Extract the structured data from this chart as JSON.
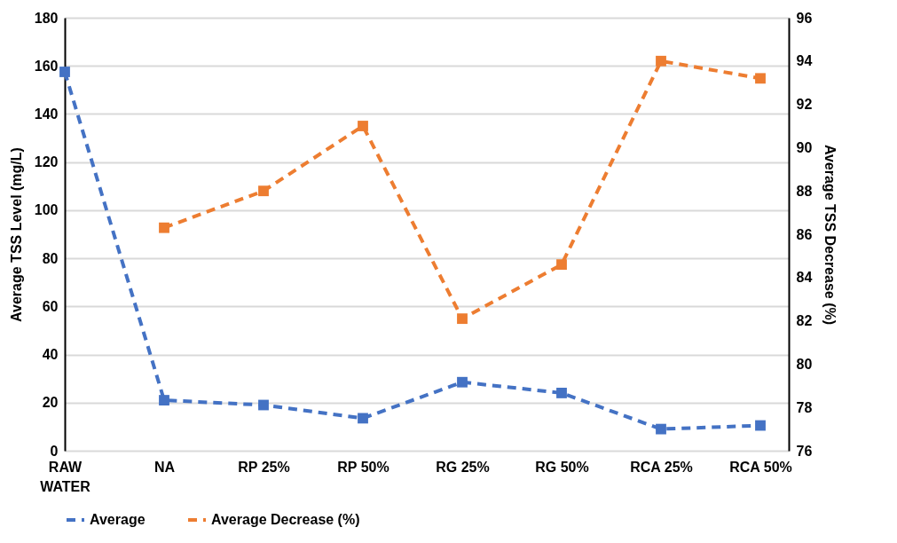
{
  "chart_data": {
    "type": "line",
    "ylabel": "Average TSS Level (mg/L)",
    "y2label": "Average TSS Decrease (%)",
    "categories": [
      "RAW\nWATER",
      "NA",
      "RP 25%",
      "RP 50%",
      "RG 25%",
      "RG 50%",
      "RCA 25%",
      "RCA 50%"
    ],
    "series": [
      {
        "name": "Average",
        "color": "#4472c4",
        "values": [
          157.5,
          21,
          19,
          13.5,
          28.5,
          24,
          9,
          10.5
        ]
      },
      {
        "name": "Average Decrease (%)",
        "color": "#ed7d31",
        "axis": "y2",
        "values": [
          null,
          86.3,
          88.0,
          91.0,
          82.1,
          84.6,
          94.0,
          93.2
        ]
      }
    ],
    "ylim": [
      0,
      180
    ],
    "yticks": [
      0,
      20,
      40,
      60,
      80,
      100,
      120,
      140,
      160,
      180
    ],
    "y2lim": [
      76,
      96
    ],
    "y2ticks": [
      76,
      78,
      80,
      82,
      84,
      86,
      88,
      90,
      92,
      94,
      96
    ],
    "grid": "y",
    "legend": "bottom",
    "marker": "square",
    "line_style": "dashed"
  }
}
